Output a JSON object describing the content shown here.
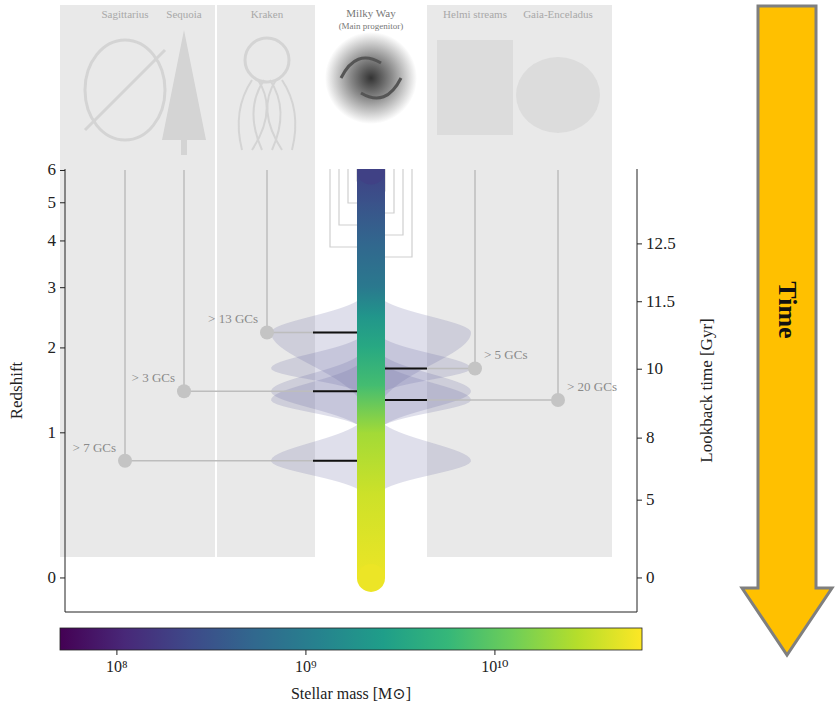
{
  "chart_data": {
    "type": "timeline",
    "ylabel": "Redshift",
    "log": "y",
    "ylim": [
      -0.15,
      6.05
    ],
    "yticks": [
      0,
      1,
      2,
      3,
      4,
      5,
      6
    ],
    "y2label": "Lookback time [Gyr]",
    "y2ticks": [
      0,
      5,
      8,
      10,
      11.5,
      12.5
    ],
    "y2tick_redshifts": [
      0,
      0.45,
      0.95,
      1.71,
      2.74,
      3.93
    ],
    "arrow_label": "Time",
    "main_progenitor": {
      "name": "Milky Way",
      "subtitle": "(Main progenitor)",
      "redshift": [
        6,
        5,
        4,
        3,
        2.5,
        2,
        1.5,
        1,
        0.5,
        0
      ],
      "stellar_mass": [
        200000000.0,
        300000000.0,
        500000000.0,
        900000000.0,
        2000000000.0,
        3600000000.0,
        7000000000.0,
        22000000000.0,
        35000000000.0,
        50000000000.0
      ]
    },
    "left_satellites": [
      {
        "name": "Sagittarius",
        "redshift": 0.75,
        "redshift_range": [
          0.48,
          1.17
        ],
        "label": "> 7 GCs"
      },
      {
        "name": "Sequoia",
        "redshift": 1.44,
        "redshift_range": [
          1.0,
          2.0
        ],
        "label": "> 3 GCs"
      },
      {
        "name": "Kraken",
        "redshift": 2.23,
        "redshift_range": [
          1.2,
          2.9
        ],
        "label": "> 13 GCs"
      }
    ],
    "right_satellites": [
      {
        "name": "Helmi streams",
        "redshift": 1.72,
        "redshift_range": [
          1.38,
          2.24
        ],
        "label": "> 5 GCs"
      },
      {
        "name": "Gaia-Enceladus",
        "redshift": 1.34,
        "redshift_range": [
          1.02,
          1.88
        ],
        "label": "> 20 GCs"
      }
    ],
    "colorbar": {
      "label": "Stellar mass [M⊙]",
      "log": true,
      "range": [
        50000000.0,
        60000000000.0
      ],
      "ticks": [
        {
          "value": 100000000.0,
          "label": "10⁸"
        },
        {
          "value": 1000000000.0,
          "label": "10⁹"
        },
        {
          "value": 10000000000.0,
          "label": "10¹⁰"
        }
      ]
    }
  }
}
